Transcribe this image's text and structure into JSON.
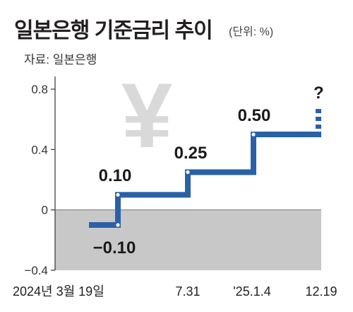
{
  "header": {
    "title": "일본은행 기준금리 추이",
    "unit": "(단위: %)",
    "source": "자료: 일본은행"
  },
  "decor": {
    "symbol": "¥",
    "uncertain_marker": "?"
  },
  "chart_data": {
    "type": "line",
    "step": true,
    "title": "일본은행 기준금리 추이",
    "ylim": [
      -0.4,
      0.8
    ],
    "yticks": [
      -0.4,
      0,
      0.4,
      0.8
    ],
    "ytick_labels": [
      "−0.4",
      "0",
      "0.4",
      "0.8"
    ],
    "xtick_labels": [
      "2024년 3월 19일",
      "7.31",
      "'25.1.4",
      "12.19"
    ],
    "points": [
      {
        "x": "before",
        "y": -0.1
      },
      {
        "x": "2024년 3월 19일",
        "y": 0.1,
        "prev_label": "−0.10",
        "label": "0.10"
      },
      {
        "x": "7.31",
        "y": 0.25,
        "label": "0.25"
      },
      {
        "x": "'25.1.4",
        "y": 0.5,
        "label": "0.50"
      },
      {
        "x": "12.19",
        "y": 0.5
      }
    ],
    "next": "?",
    "colors": {
      "line": "#2a60a8",
      "negative_region": "#c8c8c8",
      "marker": "#ffffff"
    }
  }
}
